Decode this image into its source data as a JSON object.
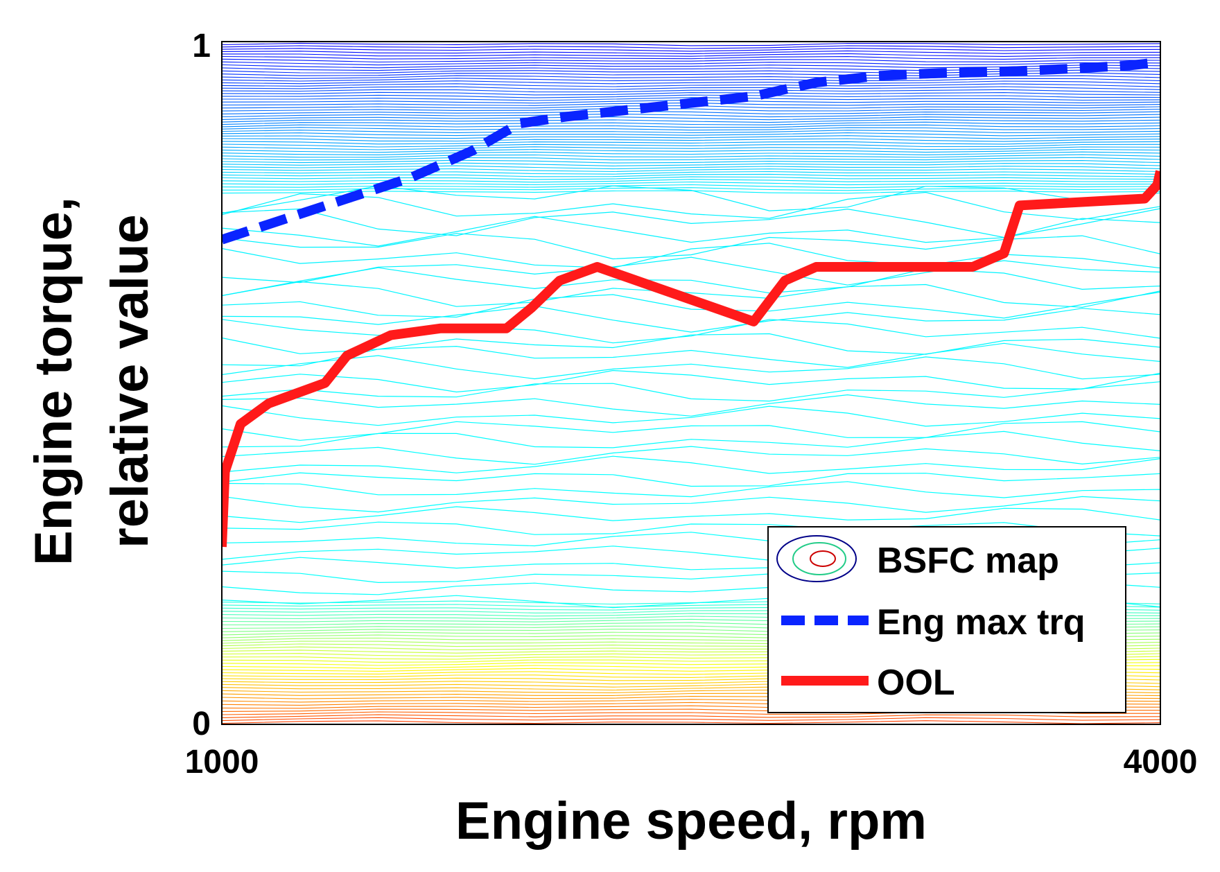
{
  "chart_data": {
    "type": "line",
    "title": "",
    "xlabel": "Engine speed, rpm",
    "ylabel_lines": [
      "Engine torque,",
      "relative value"
    ],
    "xlim": [
      1000,
      4000
    ],
    "ylim": [
      0,
      1
    ],
    "x_ticks": [
      "1000",
      "4000"
    ],
    "y_ticks": [
      "0",
      "1"
    ],
    "legend": {
      "placement": "bottom-right",
      "entries": [
        {
          "label": "BSFC map",
          "style": "contour"
        },
        {
          "label": "Eng max trq",
          "style": "dashed",
          "color": "#0a24ff"
        },
        {
          "label": "OOL",
          "style": "solid",
          "color": "#ff1a1a"
        }
      ]
    },
    "series": [
      {
        "name": "Eng max trq",
        "color": "#0a24ff",
        "style": "dashed",
        "x": [
          1000,
          1200,
          1400,
          1600,
          1800,
          1950,
          2100,
          2300,
          2500,
          2700,
          2900,
          3100,
          3300,
          3500,
          3700,
          3900,
          4000
        ],
        "y": [
          0.71,
          0.74,
          0.77,
          0.8,
          0.84,
          0.88,
          0.89,
          0.9,
          0.91,
          0.92,
          0.94,
          0.95,
          0.954,
          0.956,
          0.96,
          0.965,
          0.97
        ]
      },
      {
        "name": "OOL",
        "color": "#ff1a1a",
        "style": "solid",
        "x": [
          1000,
          1010,
          1060,
          1150,
          1330,
          1400,
          1540,
          1700,
          1910,
          1990,
          2080,
          2200,
          2700,
          2800,
          2900,
          3400,
          3500,
          3550,
          3950,
          3990,
          4000
        ],
        "y": [
          0.26,
          0.37,
          0.44,
          0.47,
          0.5,
          0.54,
          0.57,
          0.58,
          0.58,
          0.61,
          0.65,
          0.67,
          0.59,
          0.65,
          0.67,
          0.67,
          0.69,
          0.76,
          0.77,
          0.79,
          0.81
        ]
      }
    ],
    "bsfc_map": {
      "description": "BSFC contour map",
      "colormap": "jet",
      "low_torque_band": [
        0.0,
        0.18
      ],
      "mid_band": [
        0.18,
        0.78
      ],
      "high_band": [
        0.78,
        1.0
      ]
    }
  }
}
